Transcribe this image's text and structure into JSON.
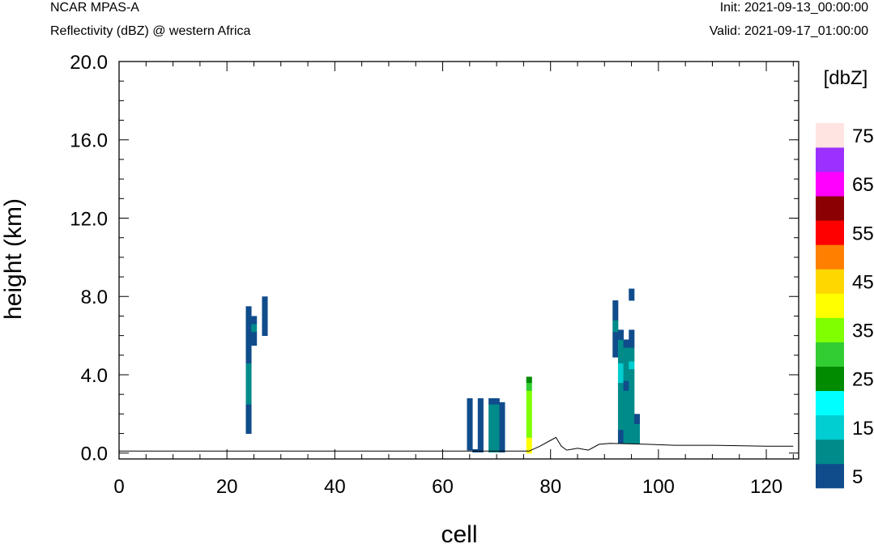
{
  "header": {
    "model": "NCAR MPAS-A",
    "field": "Reflectivity (dBZ) @ western Africa",
    "init": "Init: 2021-09-13_00:00:00",
    "valid": "Valid: 2021-09-17_01:00:00"
  },
  "chart_data": {
    "type": "heatmap",
    "xlabel": "cell",
    "ylabel": "height (km)",
    "xlim": [
      0,
      126
    ],
    "ylim": [
      -0.3,
      20.0
    ],
    "xticks": [
      0,
      20,
      40,
      60,
      80,
      100,
      120
    ],
    "yticks": [
      0.0,
      4.0,
      8.0,
      12.0,
      16.0,
      20.0
    ],
    "xtick_labels": [
      "0",
      "20",
      "40",
      "60",
      "80",
      "100",
      "120"
    ],
    "ytick_labels": [
      "0.0",
      "4.0",
      "8.0",
      "12.0",
      "16.0",
      "20.0"
    ],
    "colorbar": {
      "title": "[dbZ]",
      "levels": [
        5,
        10,
        15,
        20,
        25,
        30,
        35,
        40,
        45,
        50,
        55,
        60,
        65,
        70,
        75
      ],
      "labels": [
        "5",
        "15",
        "25",
        "35",
        "45",
        "55",
        "65",
        "75"
      ],
      "colors": [
        "#104c8b",
        "#008b8b",
        "#00ced1",
        "#00ffff",
        "#008b00",
        "#32cd32",
        "#7fff00",
        "#ffff00",
        "#ffd700",
        "#ff7f00",
        "#ff0000",
        "#8b0000",
        "#ff00ff",
        "#9b30ff",
        "#ffe4e1"
      ]
    },
    "cells": [
      {
        "x": 24,
        "y0": 1.0,
        "y1": 2.5,
        "dbz": 5
      },
      {
        "x": 24,
        "y0": 2.5,
        "y1": 4.6,
        "dbz": 10
      },
      {
        "x": 24,
        "y0": 4.6,
        "y1": 7.5,
        "dbz": 5
      },
      {
        "x": 25,
        "y0": 5.5,
        "y1": 6.2,
        "dbz": 5
      },
      {
        "x": 25,
        "y0": 6.2,
        "y1": 6.6,
        "dbz": 10
      },
      {
        "x": 25,
        "y0": 6.6,
        "y1": 7.0,
        "dbz": 5
      },
      {
        "x": 27,
        "y0": 6.0,
        "y1": 8.0,
        "dbz": 5
      },
      {
        "x": 65,
        "y0": 0.15,
        "y1": 2.8,
        "dbz": 5
      },
      {
        "x": 66,
        "y0": 0.05,
        "y1": 0.2,
        "dbz": 5
      },
      {
        "x": 67,
        "y0": 0.05,
        "y1": 2.8,
        "dbz": 5
      },
      {
        "x": 69,
        "y0": 0.05,
        "y1": 2.5,
        "dbz": 10
      },
      {
        "x": 69,
        "y0": 2.5,
        "y1": 2.8,
        "dbz": 5
      },
      {
        "x": 70,
        "y0": 0.05,
        "y1": 2.5,
        "dbz": 10
      },
      {
        "x": 70,
        "y0": 2.5,
        "y1": 2.8,
        "dbz": 5
      },
      {
        "x": 71,
        "y0": 0.05,
        "y1": 2.6,
        "dbz": 5
      },
      {
        "x": 76,
        "y0": 0.0,
        "y1": 0.8,
        "dbz": 40
      },
      {
        "x": 76,
        "y0": 0.8,
        "y1": 3.2,
        "dbz": 35
      },
      {
        "x": 76,
        "y0": 3.2,
        "y1": 3.6,
        "dbz": 30
      },
      {
        "x": 76,
        "y0": 3.6,
        "y1": 3.9,
        "dbz": 25
      },
      {
        "x": 92,
        "y0": 4.9,
        "y1": 6.2,
        "dbz": 5
      },
      {
        "x": 92,
        "y0": 6.2,
        "y1": 6.8,
        "dbz": 10
      },
      {
        "x": 92,
        "y0": 6.8,
        "y1": 7.8,
        "dbz": 5
      },
      {
        "x": 93,
        "y0": 0.5,
        "y1": 1.2,
        "dbz": 5
      },
      {
        "x": 93,
        "y0": 1.2,
        "y1": 3.6,
        "dbz": 10
      },
      {
        "x": 93,
        "y0": 3.6,
        "y1": 4.6,
        "dbz": 15
      },
      {
        "x": 93,
        "y0": 4.6,
        "y1": 5.8,
        "dbz": 10
      },
      {
        "x": 93,
        "y0": 5.8,
        "y1": 6.3,
        "dbz": 5
      },
      {
        "x": 94,
        "y0": 0.5,
        "y1": 3.2,
        "dbz": 10
      },
      {
        "x": 94,
        "y0": 3.2,
        "y1": 3.7,
        "dbz": 5
      },
      {
        "x": 94,
        "y0": 3.7,
        "y1": 5.4,
        "dbz": 10
      },
      {
        "x": 94,
        "y0": 5.4,
        "y1": 5.8,
        "dbz": 5
      },
      {
        "x": 95,
        "y0": 0.5,
        "y1": 4.3,
        "dbz": 10
      },
      {
        "x": 95,
        "y0": 4.3,
        "y1": 4.7,
        "dbz": 15
      },
      {
        "x": 95,
        "y0": 4.7,
        "y1": 5.4,
        "dbz": 10
      },
      {
        "x": 95,
        "y0": 5.4,
        "y1": 6.3,
        "dbz": 5
      },
      {
        "x": 95,
        "y0": 7.8,
        "y1": 8.4,
        "dbz": 5
      },
      {
        "x": 96,
        "y0": 0.5,
        "y1": 1.5,
        "dbz": 10
      },
      {
        "x": 96,
        "y0": 1.5,
        "y1": 2.0,
        "dbz": 5
      }
    ],
    "terrain": [
      [
        0,
        0.1
      ],
      [
        76,
        0.1
      ],
      [
        78,
        0.35
      ],
      [
        80,
        0.65
      ],
      [
        81,
        0.8
      ],
      [
        82,
        0.35
      ],
      [
        83,
        0.15
      ],
      [
        85,
        0.25
      ],
      [
        87,
        0.15
      ],
      [
        89,
        0.45
      ],
      [
        91,
        0.5
      ],
      [
        98,
        0.45
      ],
      [
        103,
        0.4
      ],
      [
        110,
        0.4
      ],
      [
        120,
        0.35
      ],
      [
        125,
        0.35
      ]
    ]
  }
}
